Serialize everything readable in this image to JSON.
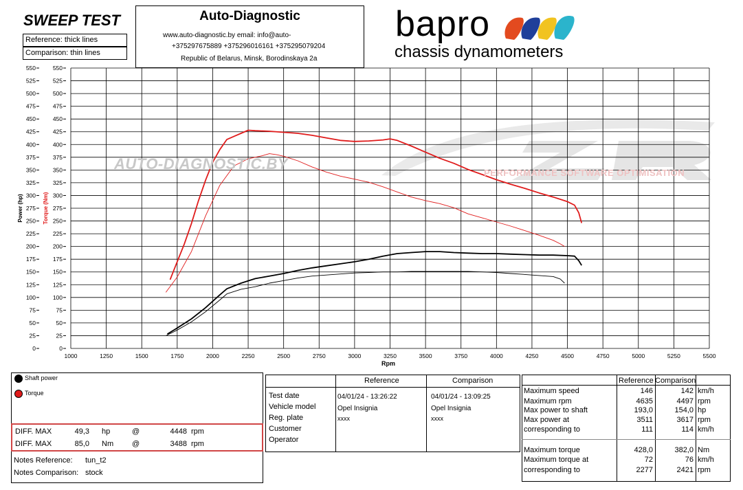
{
  "header": {
    "title": "SWEEP TEST",
    "reference_legend": "Reference: thick lines",
    "comparison_legend": "Comparison: thin lines",
    "company": "Auto-Diagnostic",
    "contact_line1": "www.auto-diagnostic.by      email: info@auto-",
    "contact_line2": "+375297675889  +375296016161  +375295079204",
    "address": "Republic of Belarus, Minsk, Borodinskaya 2a",
    "brand": "bapro",
    "brand_sub": "chassis dynamometers",
    "watermark_left": "AUTO-DIAGNOSTIC.BY",
    "watermark_right": "PERFORMANCE SOFTWARE OPTIMISATION"
  },
  "colors": {
    "power": "#000000",
    "torque": "#e01b1b",
    "grid": "#000000"
  },
  "chart_data": {
    "type": "line",
    "x_label": "Rpm",
    "y_label_power": "Power (hp)",
    "y_label_torque": "Torque (Nm)",
    "xlim": [
      1000,
      5500
    ],
    "ylim": [
      0,
      550
    ],
    "x_ticks": [
      "1000",
      "1250",
      "1500",
      "1750",
      "2000",
      "2250",
      "2500",
      "2750",
      "3000",
      "3250",
      "3500",
      "3750",
      "4000",
      "4250",
      "4500",
      "4750",
      "5000",
      "5250",
      "5500"
    ],
    "y_ticks": [
      "0",
      "25",
      "50",
      "75",
      "100",
      "125",
      "150",
      "175",
      "200",
      "225",
      "250",
      "275",
      "300",
      "325",
      "350",
      "375",
      "400",
      "425",
      "450",
      "475",
      "500",
      "525",
      "550"
    ],
    "grid": true,
    "series": [
      {
        "name": "Shaft power",
        "kind": "power",
        "run": "reference",
        "x": [
          1680,
          1750,
          1850,
          1950,
          2050,
          2100,
          2200,
          2300,
          2400,
          2500,
          2600,
          2700,
          2800,
          2900,
          3000,
          3100,
          3200,
          3300,
          3400,
          3500,
          3600,
          3700,
          3800,
          3900,
          4000,
          4100,
          4200,
          4300,
          4400,
          4500,
          4550,
          4580,
          4600
        ],
        "y": [
          28,
          40,
          58,
          80,
          105,
          117,
          128,
          137,
          142,
          147,
          153,
          158,
          162,
          166,
          170,
          175,
          181,
          186,
          188,
          190,
          190,
          188,
          187,
          186,
          186,
          185,
          184,
          183,
          183,
          182,
          181,
          172,
          163
        ]
      },
      {
        "name": "Shaft power",
        "kind": "power",
        "run": "comparison",
        "x": [
          1670,
          1750,
          1850,
          1950,
          2050,
          2100,
          2200,
          2300,
          2400,
          2500,
          2600,
          2700,
          2800,
          2900,
          3000,
          3100,
          3200,
          3300,
          3400,
          3500,
          3600,
          3700,
          3800,
          3900,
          4000,
          4100,
          4200,
          4300,
          4400,
          4450,
          4480
        ],
        "y": [
          25,
          36,
          52,
          72,
          95,
          107,
          116,
          121,
          128,
          133,
          138,
          142,
          144,
          146,
          148,
          149,
          150,
          150,
          151,
          151,
          151,
          151,
          151,
          150,
          149,
          147,
          145,
          143,
          141,
          136,
          128
        ]
      },
      {
        "name": "Torque",
        "kind": "torque",
        "run": "reference",
        "x": [
          1700,
          1750,
          1800,
          1850,
          1900,
          1950,
          2000,
          2050,
          2100,
          2150,
          2200,
          2250,
          2300,
          2400,
          2500,
          2600,
          2700,
          2800,
          2900,
          3000,
          3100,
          3200,
          3250,
          3300,
          3400,
          3500,
          3600,
          3700,
          3800,
          3900,
          4000,
          4100,
          4200,
          4300,
          4400,
          4500,
          4550,
          4580,
          4600
        ],
        "y": [
          135,
          170,
          205,
          245,
          290,
          330,
          365,
          390,
          410,
          416,
          422,
          428,
          427,
          426,
          424,
          422,
          418,
          413,
          408,
          406,
          407,
          409,
          411,
          408,
          397,
          385,
          373,
          363,
          351,
          341,
          331,
          322,
          314,
          305,
          297,
          288,
          281,
          266,
          246
        ]
      },
      {
        "name": "Torque",
        "kind": "torque",
        "run": "comparison",
        "x": [
          1670,
          1750,
          1850,
          1950,
          2050,
          2150,
          2250,
          2300,
          2350,
          2400,
          2450,
          2500,
          2600,
          2700,
          2800,
          2900,
          3000,
          3100,
          3200,
          3300,
          3400,
          3500,
          3600,
          3700,
          3800,
          3900,
          4000,
          4100,
          4200,
          4300,
          4400,
          4450,
          4480
        ],
        "y": [
          110,
          140,
          190,
          260,
          320,
          358,
          372,
          375,
          378,
          382,
          380,
          377,
          368,
          356,
          346,
          338,
          332,
          326,
          317,
          307,
          297,
          290,
          284,
          276,
          264,
          256,
          248,
          240,
          231,
          222,
          212,
          205,
          200
        ]
      }
    ]
  },
  "legend": {
    "power_label": "Shaft power",
    "torque_label": "Torque"
  },
  "diff": {
    "row1": {
      "label": "DIFF. MAX",
      "value": "49,3",
      "unit": "hp",
      "at": "@",
      "rpm": "4448",
      "rpm_unit": "rpm"
    },
    "row2": {
      "label": "DIFF. MAX",
      "value": "85,0",
      "unit": "Nm",
      "at": "@",
      "rpm": "3488",
      "rpm_unit": "rpm"
    }
  },
  "notes": {
    "ref_label": "Notes Reference:",
    "ref_value": "tun_t2",
    "cmp_label": "Notes Comparison:",
    "cmp_value": "stock"
  },
  "info": {
    "ref_header": "Reference",
    "cmp_header": "Comparison",
    "labels": [
      "Test date",
      "Vehicle model",
      "Reg. plate",
      "Customer",
      "Operator"
    ],
    "ref_values": [
      "04/01/24 - 13:26:22",
      "Opel Insignia",
      "xxxx"
    ],
    "cmp_values": [
      "04/01/24 - 13:09:25",
      "Opel Insignia",
      "xxxx"
    ]
  },
  "results": {
    "ref_header": "Reference",
    "cmp_header": "Comparison",
    "rows": [
      {
        "label": "Maximum speed",
        "ref": "146",
        "cmp": "142",
        "unit": "km/h"
      },
      {
        "label": "Maximum rpm",
        "ref": "4635",
        "cmp": "4497",
        "unit": "rpm"
      },
      {
        "label": "Max power to shaft",
        "ref": "193,0",
        "cmp": "154,0",
        "unit": "hp"
      },
      {
        "label": "Max power at",
        "ref": "3511",
        "cmp": "3617",
        "unit": "rpm"
      },
      {
        "label": "corresponding to",
        "ref": "111",
        "cmp": "114",
        "unit": "km/h"
      },
      {
        "label": "Maximum torque",
        "ref": "428,0",
        "cmp": "382,0",
        "unit": "Nm"
      },
      {
        "label": "Maximum torque at",
        "ref": "72",
        "cmp": "76",
        "unit": "km/h"
      },
      {
        "label": "corresponding to",
        "ref": "2277",
        "cmp": "2421",
        "unit": "rpm"
      }
    ]
  }
}
